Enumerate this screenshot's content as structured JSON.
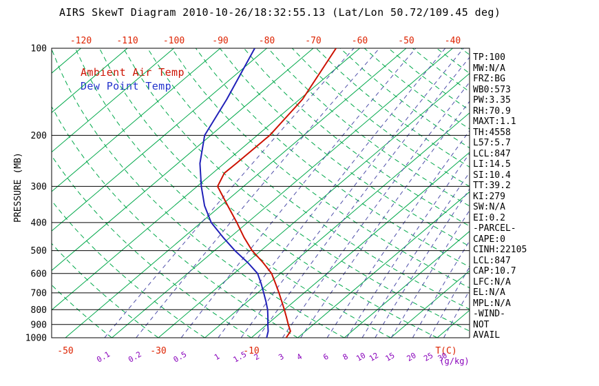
{
  "title": "AIRS SkewT Diagram 2010-10-26/18:32:55.13 (Lat/Lon 50.72/109.45 deg)",
  "legend": {
    "temp": {
      "label": "Ambient Air Temp",
      "color": "#cc1100"
    },
    "dewpoint": {
      "label": "Dew Point Temp",
      "color": "#2233cc"
    }
  },
  "axes": {
    "pressure_title": "PRESSURE (MB)",
    "pressure_ticks": [
      100,
      200,
      300,
      400,
      500,
      600,
      700,
      800,
      900,
      1000
    ],
    "top_temp_ticks": [
      -120,
      -110,
      -100,
      -90,
      -80,
      -70,
      -60,
      -50,
      -40
    ],
    "bottom_temp_ticks": [
      -50,
      -30,
      -10
    ],
    "temp_unit_label": "T(C)",
    "mixing_unit_label": "(g/kg)",
    "mixing_ratio_ticks": [
      0.1,
      0.2,
      0.5,
      1,
      1.5,
      2,
      3,
      4,
      6,
      8,
      10,
      12,
      15,
      20,
      25,
      30
    ]
  },
  "right_panel": {
    "lines": [
      "TP:100",
      "MW:N/A",
      "FRZ:BG",
      "WB0:573",
      "PW:3.35",
      "RH:70.9",
      "MAXT:1.1",
      "TH:4558",
      "L57:5.7",
      "LCL:847",
      "LI:14.5",
      "SI:10.4",
      "TT:39.2",
      "KI:279",
      "SW:N/A",
      "EI:0.2",
      "-PARCEL-",
      "CAPE:0",
      "CINH:22105",
      "LCL:847",
      "CAP:10.7",
      "LFC:N/A",
      "EL:N/A",
      "MPL:N/A",
      "-WIND-",
      "NOT",
      "AVAIL"
    ]
  },
  "chart_data": {
    "type": "line",
    "variant": "skew-t-log-p",
    "title": "AIRS SkewT Diagram 2010-10-26/18:32:55.13 (Lat/Lon 50.72/109.45 deg)",
    "xlabel": "Temperature (C)",
    "ylabel": "Pressure (MB)",
    "pressure_range": [
      100,
      1000
    ],
    "grid": "on",
    "isotherms": {
      "min": -120,
      "max": 30,
      "step": 10
    },
    "dry_adiabats_c": {
      "min": -40,
      "max": 180,
      "step": 10
    },
    "colors": {
      "isotherm": "#00a84a",
      "adiabat": "#00a84a",
      "mixing": "#4d4da8",
      "temp_label": "#dd2200",
      "mixing_label": "#8800bb",
      "pressure_line": "#000000"
    },
    "series": [
      {
        "name": "Ambient Air Temp",
        "color": "#cc1100",
        "points": [
          [
            1000,
            -2.5
          ],
          [
            950,
            -3.2
          ],
          [
            900,
            -5.4
          ],
          [
            850,
            -7.6
          ],
          [
            800,
            -10.0
          ],
          [
            750,
            -12.6
          ],
          [
            700,
            -15.4
          ],
          [
            650,
            -18.5
          ],
          [
            600,
            -21.9
          ],
          [
            550,
            -26.5
          ],
          [
            500,
            -31.9
          ],
          [
            450,
            -37.0
          ],
          [
            400,
            -42.3
          ],
          [
            350,
            -48.5
          ],
          [
            300,
            -55.6
          ],
          [
            270,
            -57.5
          ],
          [
            250,
            -57.4
          ],
          [
            200,
            -57.3
          ],
          [
            150,
            -59.4
          ],
          [
            100,
            -65.1
          ]
        ]
      },
      {
        "name": "Dew Point Temp",
        "color": "#2020b8",
        "points": [
          [
            1000,
            -6.7
          ],
          [
            950,
            -8.0
          ],
          [
            900,
            -9.8
          ],
          [
            850,
            -11.6
          ],
          [
            800,
            -13.6
          ],
          [
            750,
            -16.0
          ],
          [
            700,
            -18.7
          ],
          [
            650,
            -21.6
          ],
          [
            600,
            -24.9
          ],
          [
            550,
            -29.8
          ],
          [
            500,
            -35.6
          ],
          [
            450,
            -41.5
          ],
          [
            400,
            -47.8
          ],
          [
            350,
            -53.5
          ],
          [
            300,
            -59.1
          ],
          [
            250,
            -65.2
          ],
          [
            200,
            -71.3
          ],
          [
            150,
            -75.7
          ],
          [
            100,
            -82.6
          ]
        ]
      }
    ]
  }
}
